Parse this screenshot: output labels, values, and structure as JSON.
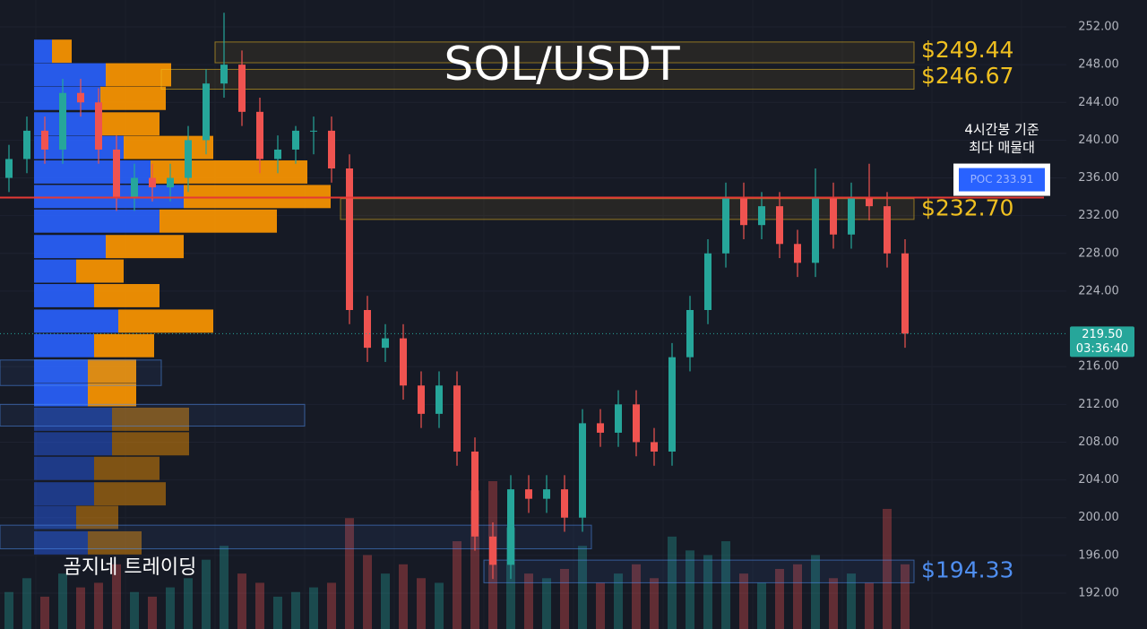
{
  "chart_data": {
    "type": "candlestick",
    "title": "SOL/USDT",
    "watermark": "곰지네 트레이딩",
    "annotation": [
      "4시간봉 기준",
      "최다 매물대"
    ],
    "ylim": [
      188.2,
      254.85
    ],
    "yticks": [
      {
        "value": 252,
        "label": "252.00"
      },
      {
        "value": 248,
        "label": "248.00"
      },
      {
        "value": 244,
        "label": "244.00"
      },
      {
        "value": 240,
        "label": "240.00"
      },
      {
        "value": 236,
        "label": "236.00"
      },
      {
        "value": 232,
        "label": "232.00"
      },
      {
        "value": 228,
        "label": "228.00"
      },
      {
        "value": 224,
        "label": "224.00"
      },
      {
        "value": 216,
        "label": "216.00"
      },
      {
        "value": 212,
        "label": "212.00"
      },
      {
        "value": 208,
        "label": "208.00"
      },
      {
        "value": 204,
        "label": "204.00"
      },
      {
        "value": 200,
        "label": "200.00"
      },
      {
        "value": 196,
        "label": "196.00"
      },
      {
        "value": 192,
        "label": "192.00"
      }
    ],
    "up_color": "#26a69a",
    "down_color": "#ef5350",
    "open": [
      236,
      238,
      241,
      239,
      245,
      244,
      239,
      234,
      236,
      235,
      236,
      240,
      246,
      248,
      243,
      238,
      239,
      241,
      241,
      237,
      222,
      218,
      219,
      214,
      211,
      214,
      207,
      198,
      195,
      203,
      202,
      203,
      200,
      210,
      209,
      212,
      208,
      207,
      217,
      222,
      228,
      234,
      231,
      233,
      229,
      227,
      234,
      230,
      234,
      233,
      228
    ],
    "high": [
      239.5,
      242.5,
      242.5,
      246.5,
      246.5,
      245.5,
      240.5,
      237.5,
      237.5,
      237.5,
      241.5,
      247.5,
      253.5,
      249.5,
      244.5,
      240.5,
      241.5,
      242.5,
      242.5,
      238.5,
      223.5,
      220.5,
      220.5,
      215.5,
      215.5,
      215.5,
      208.5,
      199.5,
      204.5,
      204.5,
      204.5,
      204.5,
      211.5,
      211.5,
      213.5,
      213.5,
      209.5,
      218.5,
      223.5,
      229.5,
      235.5,
      235.5,
      234.5,
      234.5,
      230.5,
      237,
      235.5,
      235.5,
      237.5,
      234.5,
      229.5
    ],
    "low": [
      234.5,
      236.5,
      237.5,
      237.5,
      242.5,
      237.5,
      232.5,
      232.5,
      233.5,
      233.5,
      234.5,
      238.5,
      244.5,
      241.5,
      236.5,
      236.5,
      237.5,
      238.5,
      235.5,
      220.5,
      216.5,
      216.5,
      212.5,
      209.5,
      209.5,
      205.5,
      196.5,
      193.5,
      193.5,
      200.5,
      200.5,
      198.5,
      198.5,
      207.5,
      207.5,
      206.5,
      205.5,
      205.5,
      215.5,
      220.5,
      226.5,
      229.5,
      229.5,
      227.5,
      225.5,
      225.5,
      228.5,
      228.5,
      231.5,
      226.5,
      218
    ],
    "close": [
      238,
      241,
      239,
      245,
      244,
      239,
      234,
      236,
      235,
      236,
      240,
      246,
      248,
      243,
      238,
      239,
      241,
      241,
      237,
      222,
      218,
      219,
      214,
      211,
      214,
      207,
      198,
      195,
      203,
      202,
      203,
      200,
      210,
      209,
      212,
      208,
      207,
      217,
      222,
      228,
      234,
      231,
      233,
      229,
      227,
      234,
      230,
      234,
      233,
      228,
      219.5
    ],
    "volume": [
      40,
      55,
      35,
      60,
      45,
      50,
      70,
      40,
      35,
      45,
      55,
      75,
      90,
      60,
      50,
      35,
      40,
      45,
      50,
      120,
      80,
      60,
      70,
      55,
      50,
      95,
      150,
      160,
      110,
      60,
      55,
      65,
      90,
      50,
      60,
      70,
      55,
      100,
      85,
      80,
      95,
      60,
      50,
      65,
      70,
      80,
      55,
      60,
      50,
      130,
      70
    ],
    "volume_profile": {
      "price": [
        249.4,
        246.9,
        244.4,
        241.7,
        239.2,
        236.6,
        234.0,
        231.4,
        228.7,
        226.1,
        223.5,
        220.8,
        218.2,
        215.5,
        213.0,
        210.4,
        207.8,
        205.2,
        202.5,
        200.0,
        197.3
      ],
      "buy": [
        20,
        80,
        74,
        74,
        100,
        130,
        167,
        140,
        80,
        47,
        67,
        94,
        67,
        60,
        60,
        87,
        87,
        67,
        67,
        47,
        60
      ],
      "sell": [
        22,
        73,
        73,
        66,
        100,
        175,
        164,
        131,
        87,
        53,
        73,
        106,
        67,
        54,
        54,
        86,
        86,
        73,
        80,
        47,
        60
      ],
      "buy_color": "#2962ff",
      "sell_color": "#ff9800"
    },
    "zones": [
      {
        "value": 249.44,
        "label": "$249.44",
        "top": 250.4,
        "bottom": 248.2,
        "from": 12,
        "to": 50,
        "color": "#f0c020"
      },
      {
        "value": 246.67,
        "label": "$246.67",
        "top": 247.5,
        "bottom": 245.4,
        "from": 9,
        "to": 50,
        "color": "#f0c020"
      },
      {
        "value": 232.7,
        "label": "$232.70",
        "top": 233.8,
        "bottom": 231.6,
        "from": 19,
        "to": 50,
        "color": "#f0c020"
      },
      {
        "value": 194.33,
        "label": "$194.33",
        "top": 195.5,
        "bottom": 193.1,
        "from": 27,
        "to": 50,
        "color": "#4f8ef0"
      },
      {
        "top": 199.2,
        "bottom": 196.7,
        "from": 0,
        "to": 32,
        "color": "#4f8ef0"
      },
      {
        "top": 212.0,
        "bottom": 209.7,
        "from": 0,
        "to": 16,
        "color": "#4f8ef0"
      },
      {
        "top": 216.7,
        "bottom": 214.0,
        "from": 0,
        "to": 8,
        "color": "#4f8ef0"
      }
    ],
    "poc": {
      "value": 233.91,
      "label": "POC 233.91",
      "color": "#e53935"
    },
    "last_price": {
      "value": 219.5,
      "label": "219.50",
      "countdown": "03:36:40",
      "color": "#26a69a"
    }
  }
}
